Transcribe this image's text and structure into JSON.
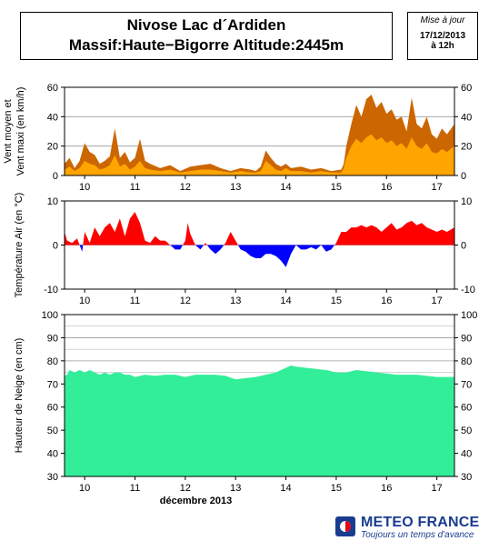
{
  "header": {
    "title_line1": "Nivose Lac d´Ardiden",
    "title_line2": "Massif:Haute−Bigorre Altitude:2445m",
    "update_label": "Mise à jour",
    "update_date": "17/12/2013",
    "update_time": "à 12h"
  },
  "logo": {
    "name": "METEO FRANCE",
    "tagline": "Toujours un temps d'avance"
  },
  "colors": {
    "wind_max": "#cc6600",
    "wind_mean": "#ffa500",
    "temp_pos": "#ff0000",
    "temp_neg": "#0000ff",
    "snow": "#33ee99"
  },
  "chart_data": [
    {
      "type": "area",
      "name": "wind",
      "ylabel": "Vent moyen et Vent maxi (en km/h)",
      "ylim": [
        0,
        60
      ],
      "yticks": [
        0,
        20,
        40,
        60
      ],
      "x_domain": [
        9.6,
        17.35
      ],
      "xticks": [
        10,
        11,
        12,
        13,
        14,
        15,
        16,
        17
      ],
      "grid": true,
      "series": [
        {
          "key": "max",
          "x": [
            9.6,
            9.7,
            9.8,
            9.9,
            10.0,
            10.1,
            10.2,
            10.3,
            10.4,
            10.5,
            10.6,
            10.7,
            10.8,
            10.9,
            11.0,
            11.1,
            11.2,
            11.3,
            11.5,
            11.7,
            11.9,
            12.1,
            12.3,
            12.5,
            12.7,
            12.9,
            13.1,
            13.3,
            13.4,
            13.5,
            13.6,
            13.7,
            13.8,
            13.9,
            14.0,
            14.1,
            14.3,
            14.5,
            14.7,
            14.9,
            15.1,
            15.15,
            15.2,
            15.3,
            15.4,
            15.5,
            15.6,
            15.7,
            15.8,
            15.9,
            16.0,
            16.1,
            16.2,
            16.3,
            16.4,
            16.5,
            16.6,
            16.7,
            16.8,
            16.9,
            17.0,
            17.1,
            17.2,
            17.35
          ],
          "values": [
            8,
            12,
            5,
            10,
            22,
            16,
            14,
            8,
            10,
            13,
            32,
            12,
            16,
            9,
            12,
            25,
            10,
            8,
            5,
            7,
            3,
            6,
            7,
            8,
            5,
            3,
            5,
            4,
            3,
            6,
            17,
            12,
            8,
            6,
            8,
            5,
            6,
            4,
            5,
            3,
            4,
            8,
            20,
            35,
            48,
            40,
            52,
            55,
            46,
            50,
            42,
            45,
            38,
            40,
            30,
            53,
            35,
            32,
            40,
            28,
            25,
            32,
            28,
            35
          ]
        },
        {
          "key": "mean",
          "x": [
            9.6,
            9.7,
            9.8,
            9.9,
            10.0,
            10.1,
            10.2,
            10.3,
            10.4,
            10.5,
            10.6,
            10.7,
            10.8,
            10.9,
            11.0,
            11.1,
            11.2,
            11.3,
            11.5,
            11.7,
            11.9,
            12.1,
            12.3,
            12.5,
            12.7,
            12.9,
            13.1,
            13.3,
            13.4,
            13.5,
            13.6,
            13.7,
            13.8,
            13.9,
            14.0,
            14.1,
            14.3,
            14.5,
            14.7,
            14.9,
            15.1,
            15.15,
            15.2,
            15.3,
            15.4,
            15.5,
            15.6,
            15.7,
            15.8,
            15.9,
            16.0,
            16.1,
            16.2,
            16.3,
            16.4,
            16.5,
            16.6,
            16.7,
            16.8,
            16.9,
            17.0,
            17.1,
            17.2,
            17.35
          ],
          "values": [
            4,
            6,
            3,
            5,
            10,
            8,
            7,
            4,
            5,
            7,
            14,
            6,
            8,
            4,
            6,
            10,
            5,
            4,
            3,
            4,
            2,
            3,
            4,
            4,
            3,
            2,
            3,
            2,
            2,
            3,
            10,
            7,
            4,
            3,
            5,
            3,
            3,
            2,
            3,
            2,
            2,
            5,
            12,
            20,
            25,
            22,
            26,
            28,
            24,
            26,
            22,
            24,
            20,
            22,
            18,
            26,
            20,
            18,
            22,
            16,
            15,
            18,
            16,
            20
          ]
        }
      ]
    },
    {
      "type": "area",
      "name": "temperature",
      "ylabel": "Température Air (en °C)",
      "ylim": [
        -10,
        10
      ],
      "yticks": [
        -10,
        0,
        10
      ],
      "x_domain": [
        9.6,
        17.35
      ],
      "xticks": [
        10,
        11,
        12,
        13,
        14,
        15,
        16,
        17
      ],
      "grid": true,
      "series": [
        {
          "key": "temp",
          "x": [
            9.6,
            9.65,
            9.75,
            9.85,
            9.95,
            10.0,
            10.1,
            10.2,
            10.3,
            10.4,
            10.5,
            10.6,
            10.7,
            10.8,
            10.9,
            11.0,
            11.1,
            11.2,
            11.3,
            11.4,
            11.5,
            11.6,
            11.7,
            11.8,
            11.9,
            12.0,
            12.05,
            12.1,
            12.2,
            12.3,
            12.4,
            12.5,
            12.6,
            12.7,
            12.8,
            12.9,
            13.0,
            13.1,
            13.2,
            13.3,
            13.4,
            13.5,
            13.6,
            13.7,
            13.8,
            13.9,
            14.0,
            14.1,
            14.2,
            14.3,
            14.4,
            14.5,
            14.6,
            14.7,
            14.8,
            14.9,
            15.0,
            15.1,
            15.2,
            15.3,
            15.4,
            15.5,
            15.6,
            15.7,
            15.8,
            15.9,
            16.0,
            16.1,
            16.2,
            16.3,
            16.4,
            16.5,
            16.6,
            16.7,
            16.8,
            16.9,
            17.0,
            17.1,
            17.2,
            17.35
          ],
          "values": [
            3,
            1,
            0.5,
            1.5,
            -1.5,
            3,
            0.5,
            4,
            2,
            4,
            5,
            3,
            6,
            2,
            6,
            7.5,
            5,
            1,
            0.5,
            2,
            1,
            1,
            0,
            -1,
            -1,
            1,
            5,
            2.5,
            0,
            -1,
            0.5,
            -1,
            -2,
            -1,
            0.5,
            3,
            1,
            -1,
            -1.5,
            -2.5,
            -3,
            -3,
            -2,
            -2,
            -2.5,
            -3.5,
            -5,
            -2,
            0,
            -1,
            -1,
            -0.5,
            -1,
            0,
            -1.5,
            -1,
            0.5,
            3,
            3,
            4,
            4,
            4.5,
            4,
            4.5,
            4,
            3,
            4,
            5,
            3.5,
            4,
            5,
            5.5,
            4.5,
            5,
            4,
            3.5,
            3,
            3.5,
            3,
            4
          ]
        }
      ]
    },
    {
      "type": "area",
      "name": "snow",
      "ylabel": "Hauteur de Neige (en cm)",
      "ylim": [
        30,
        100
      ],
      "yticks": [
        30,
        40,
        50,
        60,
        70,
        80,
        90,
        100
      ],
      "x_domain": [
        9.6,
        17.35
      ],
      "xticks": [
        10,
        11,
        12,
        13,
        14,
        15,
        16,
        17
      ],
      "xlabel": "décembre 2013",
      "grid": true,
      "series": [
        {
          "key": "snow",
          "x": [
            9.6,
            9.65,
            9.7,
            9.8,
            9.9,
            10.0,
            10.1,
            10.2,
            10.3,
            10.4,
            10.5,
            10.6,
            10.7,
            10.8,
            10.9,
            11.0,
            11.2,
            11.4,
            11.6,
            11.8,
            12.0,
            12.2,
            12.4,
            12.6,
            12.8,
            13.0,
            13.2,
            13.4,
            13.6,
            13.8,
            13.9,
            14.0,
            14.1,
            14.2,
            14.4,
            14.6,
            14.8,
            15.0,
            15.2,
            15.4,
            15.6,
            15.8,
            16.0,
            16.2,
            16.4,
            16.6,
            16.8,
            17.0,
            17.2,
            17.35
          ],
          "values": [
            73.5,
            74,
            76,
            75,
            76,
            75,
            76,
            75,
            74,
            75,
            74,
            75,
            75,
            74,
            74,
            73,
            74,
            73.5,
            74,
            74,
            73,
            74,
            74,
            74,
            73.5,
            72,
            72.5,
            73,
            74,
            75,
            76,
            77,
            78,
            77.5,
            77,
            76.5,
            76,
            75,
            75,
            76,
            75.5,
            75,
            74.5,
            74,
            74,
            74,
            73.5,
            73,
            73,
            73
          ]
        }
      ]
    }
  ]
}
